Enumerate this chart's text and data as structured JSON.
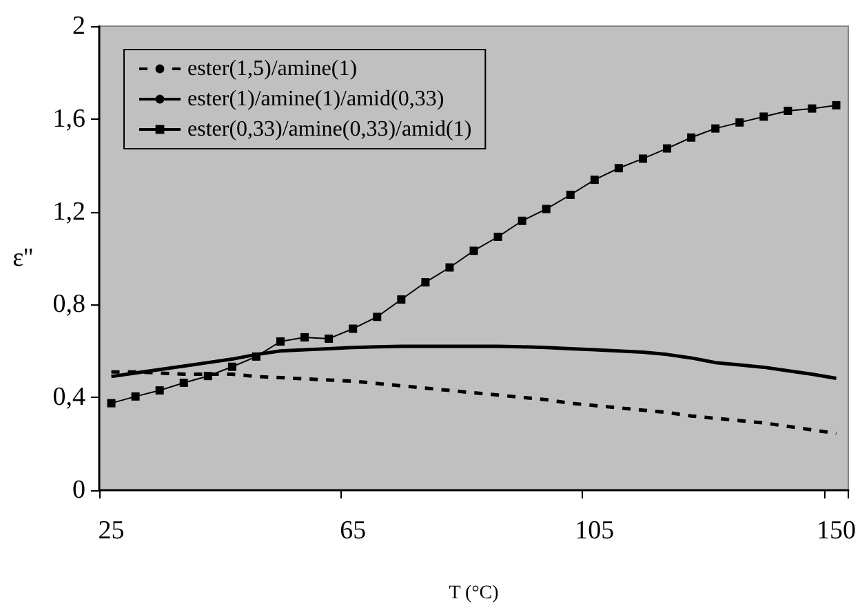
{
  "chart_data": {
    "type": "line",
    "xlabel": "T (°C)",
    "ylabel": "ε''",
    "categories": [
      "25",
      null,
      null,
      null,
      null,
      null,
      null,
      null,
      null,
      null,
      "65",
      null,
      null,
      null,
      null,
      null,
      null,
      null,
      null,
      null,
      "105",
      null,
      null,
      null,
      null,
      null,
      null,
      null,
      null,
      null,
      "150"
    ],
    "ylim": [
      0,
      2
    ],
    "yticks": [
      0,
      {
        "value": 0.4,
        "label": "0,4"
      },
      {
        "value": 0.8,
        "label": "0,8"
      },
      {
        "value": 1.2,
        "label": "1,2"
      },
      {
        "value": 1.6,
        "label": "1,6"
      },
      2
    ],
    "grid": false,
    "legend": "top left",
    "series": [
      {
        "name": "ester(1,5)/amine(1)",
        "color": "#000000",
        "line_style": "dashed",
        "marker": "none",
        "values": [
          0.51,
          0.51,
          0.505,
          0.5,
          0.5,
          0.5,
          0.49,
          0.485,
          0.48,
          0.475,
          0.47,
          0.46,
          0.45,
          0.44,
          0.43,
          0.42,
          0.41,
          0.4,
          0.39,
          0.375,
          0.365,
          0.355,
          0.345,
          0.335,
          0.32,
          0.31,
          0.3,
          0.29,
          0.275,
          0.26,
          0.245
        ]
      },
      {
        "name": "ester(1)/amine(1)/amid(0,33)",
        "color": "#000000",
        "line_style": "solid",
        "marker": "none",
        "values": [
          0.49,
          0.505,
          0.52,
          0.535,
          0.55,
          0.565,
          0.585,
          0.6,
          0.605,
          0.61,
          0.615,
          0.618,
          0.62,
          0.62,
          0.62,
          0.62,
          0.62,
          0.618,
          0.615,
          0.61,
          0.605,
          0.6,
          0.595,
          0.585,
          0.57,
          0.55,
          0.54,
          0.53,
          0.515,
          0.5,
          0.482
        ]
      },
      {
        "name": "ester(0,33)/amine(0,33)/amid(1)",
        "color": "#000000",
        "line_style": "solid",
        "marker": "square",
        "values": [
          0.375,
          0.404,
          0.43,
          0.463,
          0.492,
          0.532,
          0.576,
          0.641,
          0.659,
          0.653,
          0.696,
          0.747,
          0.822,
          0.896,
          0.96,
          1.032,
          1.092,
          1.161,
          1.212,
          1.273,
          1.338,
          1.388,
          1.429,
          1.473,
          1.52,
          1.559,
          1.585,
          1.61,
          1.635,
          1.645,
          1.659
        ]
      }
    ]
  }
}
